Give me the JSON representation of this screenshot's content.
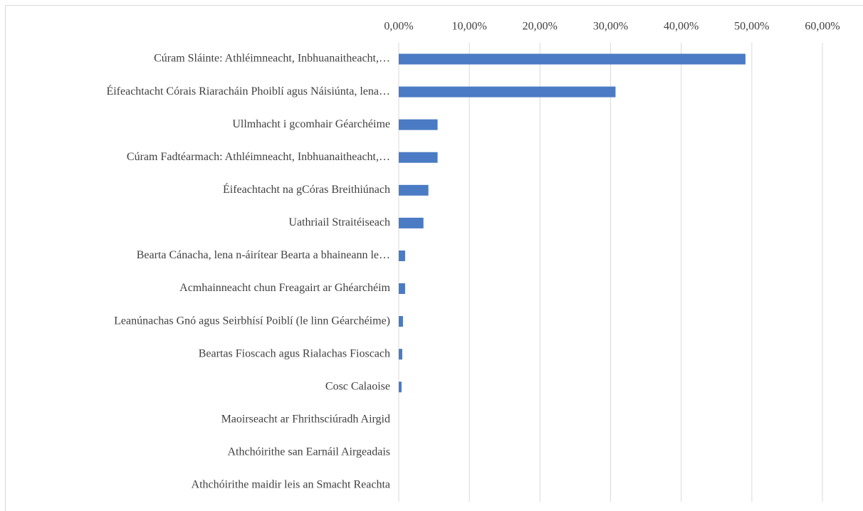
{
  "chart_data": {
    "type": "bar",
    "orientation": "horizontal",
    "categories": [
      "Cúram Sláinte: Athléimneacht, Inbhuanaitheacht,…",
      "Éifeachtacht Córais Riaracháin Phoiblí agus Náisiúnta, lena…",
      "Ullmhacht i gcomhair Géarchéime",
      "Cúram Fadtéarmach: Athléimneacht, Inbhuanaitheacht,…",
      "Éifeachtacht na gCóras Breithiúnach",
      "Uathriail Straitéiseach",
      "Bearta Cánacha, lena n-áirítear Bearta a bhaineann le…",
      "Acmhainneacht chun Freagairt ar Ghéarchéim",
      "Leanúnachas Gnó agus Seirbhísí Poiblí (le linn Géarchéime)",
      "Beartas Fioscach agus Rialachas Fioscach",
      "Cosc Calaoise",
      "Maoirseacht ar Fhrithsciúradh Airgid",
      "Athchóirithe san Earnáil Airgeadais",
      "Athchóirithe maidir leis an Smacht Reachta"
    ],
    "values": [
      49.1,
      30.7,
      5.5,
      5.5,
      4.2,
      3.5,
      0.9,
      0.9,
      0.6,
      0.5,
      0.4,
      0,
      0,
      0
    ],
    "color": "#4a7bc4",
    "xlim": [
      0,
      60
    ],
    "xticks": [
      {
        "value": 0,
        "label": "0,00%"
      },
      {
        "value": 10,
        "label": "10,00%"
      },
      {
        "value": 20,
        "label": "20,00%"
      },
      {
        "value": 30,
        "label": "30,00%"
      },
      {
        "value": 40,
        "label": "40,00%"
      },
      {
        "value": 50,
        "label": "50,00%"
      },
      {
        "value": 60,
        "label": "60,00%"
      }
    ],
    "grid": true
  }
}
